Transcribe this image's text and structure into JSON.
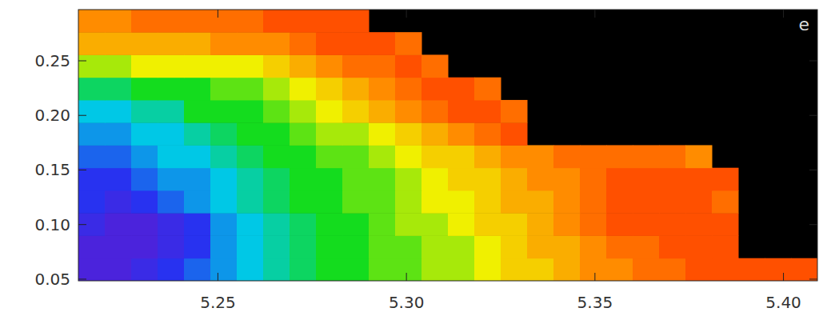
{
  "chart_data": {
    "type": "heatmap",
    "annotations": [
      "e"
    ],
    "xlim": [
      5.213,
      5.409
    ],
    "ylim": [
      0.0485,
      0.2969
    ],
    "xticks": [
      5.25,
      {
        "value": 5.3,
        "label": "5.30"
      },
      5.35,
      {
        "value": 5.4,
        "label": "5.40"
      }
    ],
    "yticks": [
      0.05,
      {
        "value": 0.1,
        "label": "0.10"
      },
      0.15,
      {
        "value": 0.2,
        "label": "0.20"
      },
      0.25
    ],
    "zlim": [
      0,
      10
    ],
    "x": [
      5.2165,
      5.2235,
      5.2305,
      5.2375,
      5.2445,
      5.2515,
      5.2585,
      5.2655,
      5.2725,
      5.2795,
      5.2865,
      5.2935,
      5.3005,
      5.3075,
      5.3145,
      5.3215,
      5.3285,
      5.3355,
      5.3425,
      5.3495,
      5.3565,
      5.3635,
      5.3705,
      5.3775,
      5.3845,
      5.3915,
      5.3985,
      5.4055
    ],
    "y": [
      0.0589,
      0.0796,
      0.1003,
      0.121,
      0.1417,
      0.1624,
      0.1831,
      0.2038,
      0.2245,
      0.2452,
      0.2659,
      0.2866
    ],
    "z": [
      [
        1,
        1,
        1.5,
        2,
        2.5,
        3,
        3.5,
        4,
        4.5,
        5,
        5,
        5.5,
        5.5,
        6,
        6,
        6.5,
        7,
        7,
        7.5,
        8,
        8,
        8.5,
        8.5,
        9,
        9,
        9,
        9,
        9
      ],
      [
        1,
        1,
        1,
        1.5,
        2,
        3,
        3.5,
        4,
        4.5,
        5,
        5,
        5.5,
        5.5,
        6,
        6,
        6.5,
        7,
        7.5,
        7.5,
        8,
        8.5,
        8.5,
        9,
        9,
        9,
        null,
        null,
        null
      ],
      [
        1.5,
        1,
        1,
        1.5,
        2,
        3,
        3.5,
        4,
        4.5,
        5,
        5,
        5.5,
        6,
        6,
        6.5,
        7,
        7,
        7.5,
        8,
        8.5,
        9,
        9,
        9,
        9,
        9,
        null,
        null,
        null
      ],
      [
        2,
        1.5,
        2,
        2.5,
        3,
        3.5,
        4,
        4.5,
        5,
        5,
        5.5,
        5.5,
        6,
        6.5,
        6.5,
        7,
        7.5,
        7.5,
        8,
        8.5,
        9,
        9,
        9,
        9,
        8.5,
        null,
        null,
        null
      ],
      [
        2,
        2,
        2.5,
        3,
        3,
        3.5,
        4,
        4.5,
        5,
        5,
        5.5,
        5.5,
        6,
        6.5,
        7,
        7,
        7.5,
        8,
        8,
        8.5,
        9,
        9,
        9,
        9,
        9,
        null,
        null,
        null
      ],
      [
        2.5,
        2.5,
        3,
        3.5,
        3.5,
        4,
        4.5,
        5,
        5,
        5.5,
        5.5,
        6,
        6.5,
        7,
        7,
        7.5,
        8,
        8,
        8.5,
        8.5,
        8.5,
        8.5,
        8.5,
        8,
        null,
        null,
        null,
        null
      ],
      [
        3,
        3,
        3.5,
        3.5,
        4,
        4.5,
        5,
        5,
        5.5,
        6,
        6,
        6.5,
        7,
        7.5,
        8,
        8.5,
        9,
        null,
        null,
        null,
        null,
        null,
        null,
        null,
        null,
        null,
        null,
        null
      ],
      [
        3.5,
        3.5,
        4,
        4,
        5,
        5,
        5,
        5.5,
        6,
        6.5,
        7,
        7.5,
        8,
        8.5,
        9,
        9,
        8.5,
        null,
        null,
        null,
        null,
        null,
        null,
        null,
        null,
        null,
        null,
        null
      ],
      [
        4.5,
        4.5,
        5,
        5,
        5,
        5.5,
        5.5,
        6,
        6.5,
        7,
        7.5,
        8,
        8.5,
        9,
        9,
        8.5,
        null,
        null,
        null,
        null,
        null,
        null,
        null,
        null,
        null,
        null,
        null,
        null
      ],
      [
        6,
        6,
        6.5,
        6.5,
        6.5,
        6.5,
        6.5,
        7,
        7.5,
        8,
        8.5,
        8.5,
        9,
        8.5,
        null,
        null,
        null,
        null,
        null,
        null,
        null,
        null,
        null,
        null,
        null,
        null,
        null,
        null
      ],
      [
        7.5,
        7.5,
        7.5,
        7.5,
        7.5,
        8,
        8,
        8,
        8.5,
        9,
        9,
        9,
        8.5,
        null,
        null,
        null,
        null,
        null,
        null,
        null,
        null,
        null,
        null,
        null,
        null,
        null,
        null,
        null
      ],
      [
        8,
        8,
        8.5,
        8.5,
        8.5,
        8.5,
        8.5,
        9,
        9,
        9,
        9,
        null,
        null,
        null,
        null,
        null,
        null,
        null,
        null,
        null,
        null,
        null,
        null,
        null,
        null,
        null,
        null,
        null
      ]
    ]
  }
}
